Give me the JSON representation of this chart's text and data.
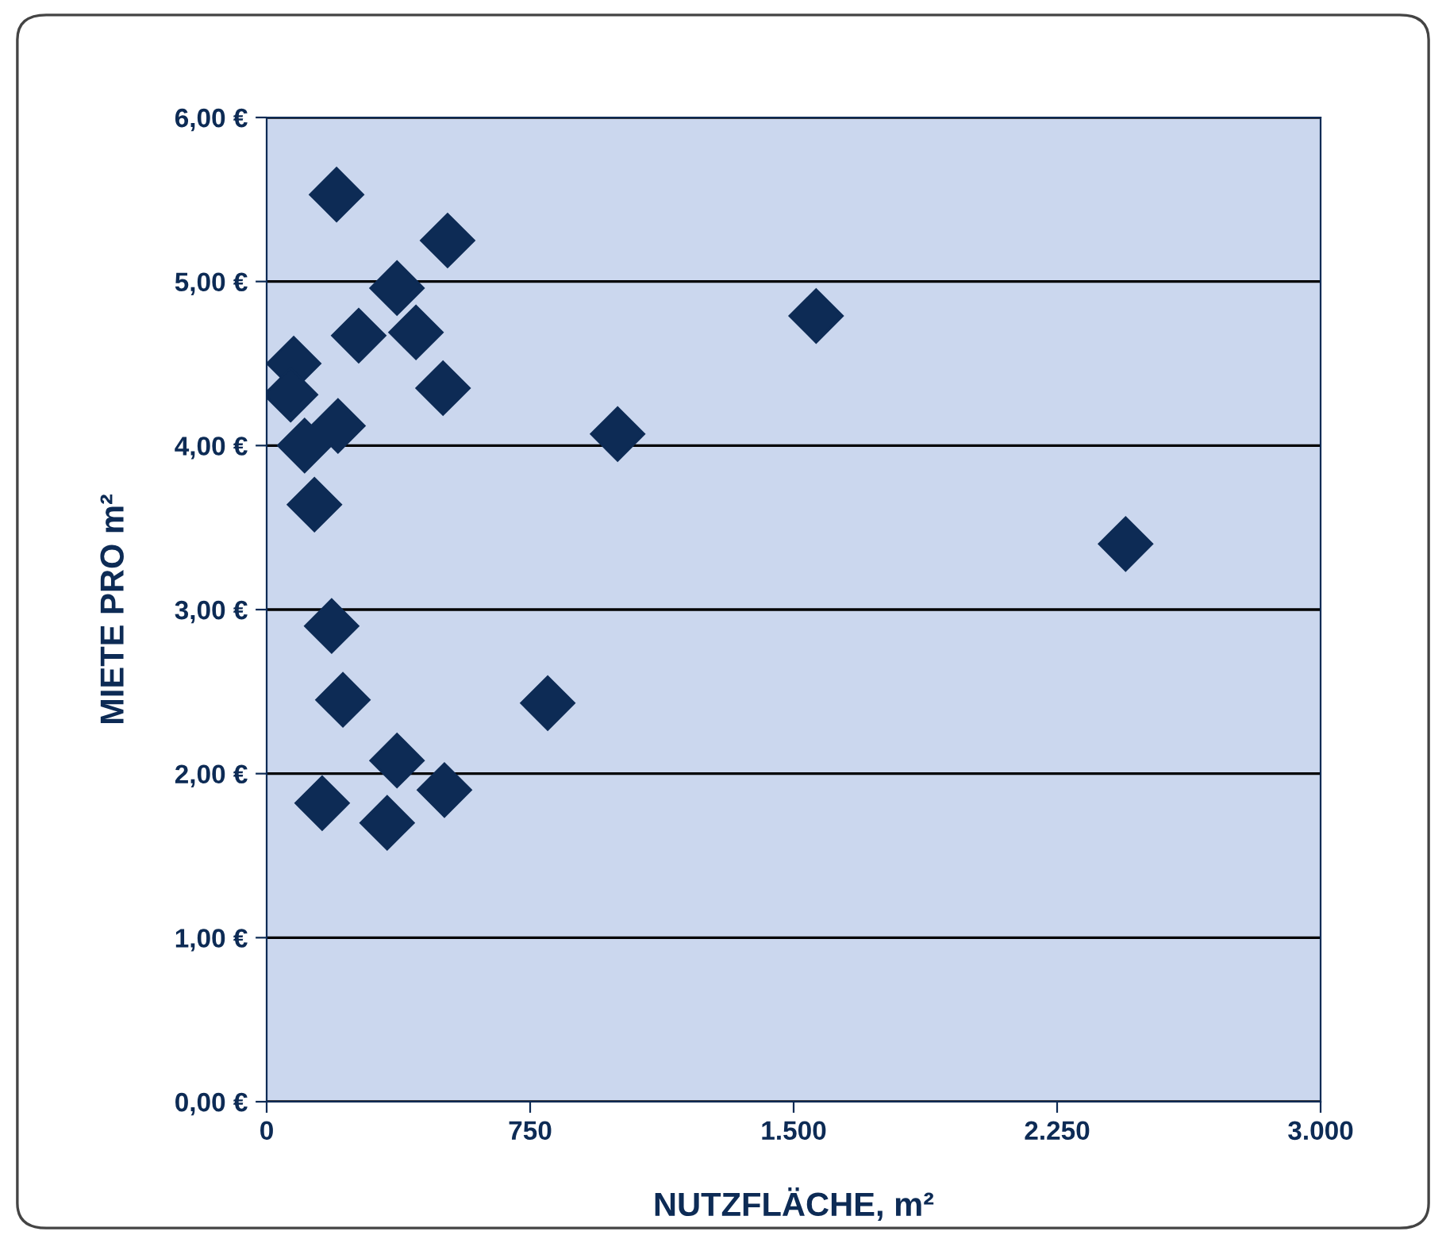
{
  "chart_data": {
    "type": "scatter",
    "xlabel": "NUTZFLÄCHE, m²",
    "ylabel": "MIETE PRO m²",
    "x": [
      199,
      515,
      371,
      77,
      262,
      425,
      1564,
      68,
      502,
      203,
      108,
      999,
      136,
      2445,
      185,
      217,
      800,
      371,
      158,
      506,
      343
    ],
    "values": [
      5.53,
      5.25,
      4.96,
      4.5,
      4.67,
      4.69,
      4.79,
      4.31,
      4.35,
      4.12,
      4.0,
      4.07,
      3.64,
      3.4,
      2.9,
      2.45,
      2.43,
      2.08,
      1.82,
      1.9,
      1.7
    ],
    "color": "#0d2b55",
    "marker": "diamond",
    "grid": "y",
    "legend": false,
    "xlim": [
      0,
      3000
    ],
    "xticks": [
      0,
      750,
      {
        "value": 1500,
        "label": "1.500"
      },
      {
        "value": 2250,
        "label": "2.250"
      },
      {
        "value": 3000,
        "label": "3.000"
      }
    ],
    "ylim": [
      0,
      6
    ],
    "yticks": [
      {
        "value": 0,
        "label": "0,00 €"
      },
      {
        "value": 1,
        "label": "1,00 €"
      },
      {
        "value": 2,
        "label": "2,00 €"
      },
      {
        "value": 3,
        "label": "3,00 €"
      },
      {
        "value": 4,
        "label": "4,00 €"
      },
      {
        "value": 5,
        "label": "5,00 €"
      },
      {
        "value": 6,
        "label": "6,00 €"
      }
    ]
  }
}
